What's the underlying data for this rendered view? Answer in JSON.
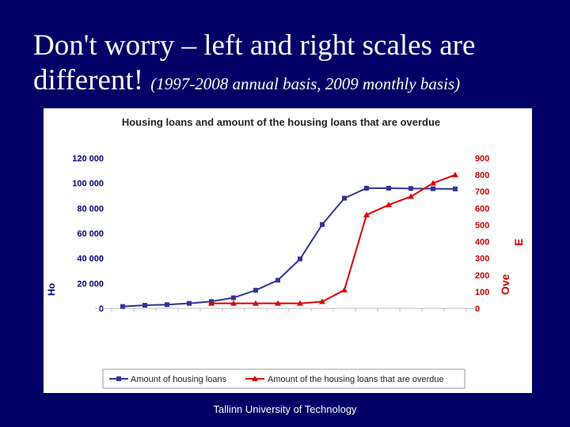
{
  "slide": {
    "title_main": "Don't worry – left and right scales are different!",
    "title_sub": "(1997-2008 annual basis, 2009 monthly basis)",
    "footer": "Tallinn University of Technology"
  },
  "colors": {
    "background": "#000066",
    "loans_series": "#333399",
    "overdue_series": "#dd0000",
    "left_axis_text": "#000080",
    "right_axis_text": "#cc0000"
  },
  "chart_data": {
    "type": "line",
    "title": "Housing loans and amount of the housing loans that are overdue",
    "ylabel_left": "Ho",
    "ylabel_right": "Ove",
    "right_axis_marker": "E",
    "x_labels_note": "rotated tick labels illegible in source",
    "left_axis": {
      "ylim": [
        0,
        120000
      ],
      "ticks": [
        "0",
        "20 000",
        "40 000",
        "60 000",
        "80 000",
        "100 000",
        "120 000"
      ]
    },
    "right_axis": {
      "ylim": [
        0,
        900
      ],
      "ticks": [
        "0",
        "100",
        "200",
        "300",
        "400",
        "500",
        "600",
        "700",
        "800",
        "900"
      ]
    },
    "grid": false,
    "legend_position": "bottom",
    "series": [
      {
        "name": "Amount of housing loans",
        "axis": "left",
        "marker": "square",
        "values": [
          1500,
          2500,
          3000,
          4000,
          5500,
          8500,
          14500,
          22500,
          39500,
          67000,
          88000,
          96000,
          96000,
          95800,
          95600,
          95400
        ]
      },
      {
        "name": "Amount of the housing loans that are overdue",
        "axis": "right",
        "marker": "triangle",
        "start_index": 4,
        "values": [
          30,
          30,
          30,
          30,
          30,
          40,
          110,
          560,
          620,
          670,
          750,
          800
        ]
      }
    ]
  }
}
